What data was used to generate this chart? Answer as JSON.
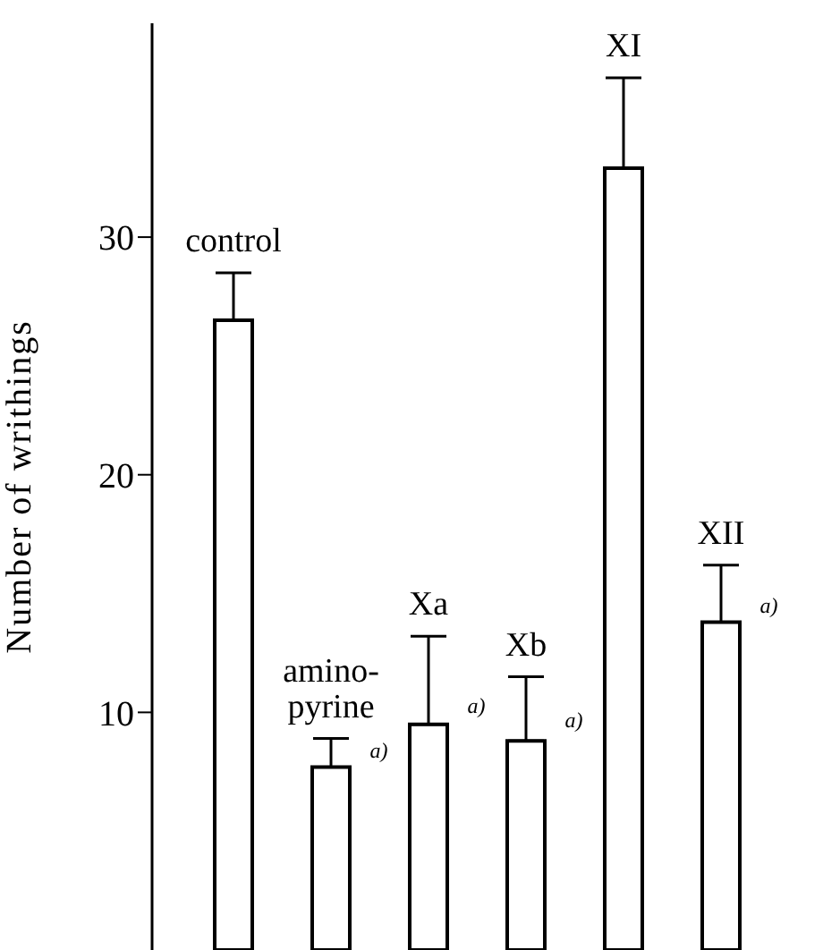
{
  "chart_data": {
    "type": "bar",
    "ylabel": "Number of writhings",
    "categories": [
      "control",
      "amino-\npyrine",
      "Xa",
      "Xb",
      "XI",
      "XII"
    ],
    "values": [
      26.5,
      7.7,
      9.5,
      8.8,
      32.9,
      13.8
    ],
    "errors": [
      [
        26.5,
        28.5
      ],
      [
        7.7,
        8.9
      ],
      [
        9.5,
        13.2
      ],
      [
        8.8,
        11.5
      ],
      [
        32.9,
        36.7
      ],
      [
        13.8,
        16.2
      ]
    ],
    "color": "#ffffff",
    "ylim": [
      0,
      39
    ],
    "yticks": [
      10,
      20,
      30
    ],
    "annotations": [
      {
        "text": "a)",
        "x": "amino-\npyrine",
        "y": 8.4
      },
      {
        "text": "a)",
        "x": "Xa",
        "y": 10.3
      },
      {
        "text": "a)",
        "x": "Xb",
        "y": 9.7
      },
      {
        "text": "a)",
        "x": "XII",
        "y": 14.5
      }
    ]
  }
}
